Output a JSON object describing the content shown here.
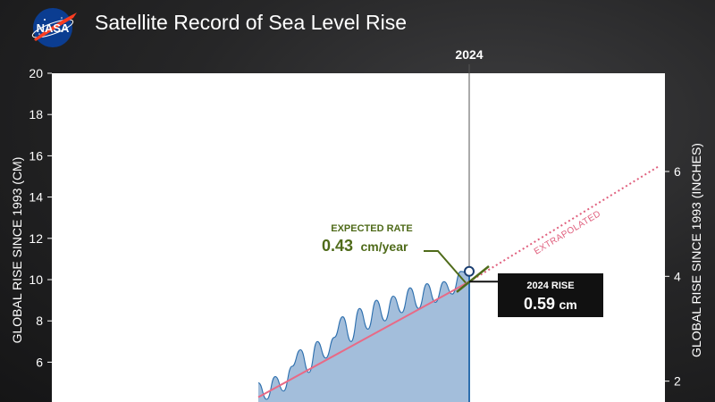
{
  "header": {
    "title": "Satellite Record of Sea Level Rise",
    "logo_text": "NASA"
  },
  "colors": {
    "background": "#222223",
    "plot_bg": "#ffffff",
    "fill": "#a3bedb",
    "observed_line": "#2d6fae",
    "trend_line": "#e86a86",
    "extrapolated": "#e0607e",
    "expected_rate": "#4f6b1a",
    "callout_bg": "#111111"
  },
  "chart_data": {
    "type": "area",
    "title": "Satellite Record of Sea Level Rise",
    "xlabel": "",
    "ylabel": "GLOBAL RISE SINCE 1993 (CM)",
    "ylabel_right": "GLOBAL RISE SINCE 1993 (INCHES)",
    "ylim": [
      0,
      20
    ],
    "yticks": [
      "20",
      "18",
      "16",
      "14",
      "12",
      "10",
      "8",
      "6"
    ],
    "yticks_right": [
      "6",
      "4",
      "2"
    ],
    "yticks_right_values": [
      6,
      4,
      2
    ],
    "grid": false,
    "series": [
      {
        "x": [
          2014.0,
          2014.4,
          2014.8,
          2015.2,
          2015.6,
          2016.0,
          2016.4,
          2016.8,
          2017.2,
          2017.6,
          2018.0,
          2018.4,
          2018.8,
          2019.2,
          2019.6,
          2020.0,
          2020.4,
          2020.8,
          2021.2,
          2021.6,
          2022.0,
          2022.4,
          2022.8,
          2023.2,
          2023.6,
          2024.0
        ],
        "values": [
          5.0,
          4.2,
          5.3,
          4.6,
          5.8,
          6.6,
          5.5,
          7.0,
          6.2,
          7.2,
          8.2,
          7.0,
          8.6,
          7.6,
          9.0,
          8.0,
          9.2,
          8.4,
          9.6,
          8.6,
          9.8,
          8.9,
          9.9,
          9.3,
          10.4,
          10.3
        ]
      },
      {
        "type": "line",
        "x": [
          2014.0,
          2024.0
        ],
        "values": [
          4.3,
          9.9
        ]
      },
      {
        "type": "line",
        "x": [
          2024.0,
          2033.0
        ],
        "values": [
          9.9,
          15.5
        ]
      }
    ],
    "annotations": {
      "year_marker": "2024",
      "expected_rate_label": "EXPECTED RATE",
      "expected_rate_value": "0.43",
      "expected_rate_unit": "cm/year",
      "rise_label": "2024 RISE",
      "rise_value": "0.59",
      "rise_unit": "cm",
      "extrapolated_label": "EXTRAPOLATED"
    }
  }
}
